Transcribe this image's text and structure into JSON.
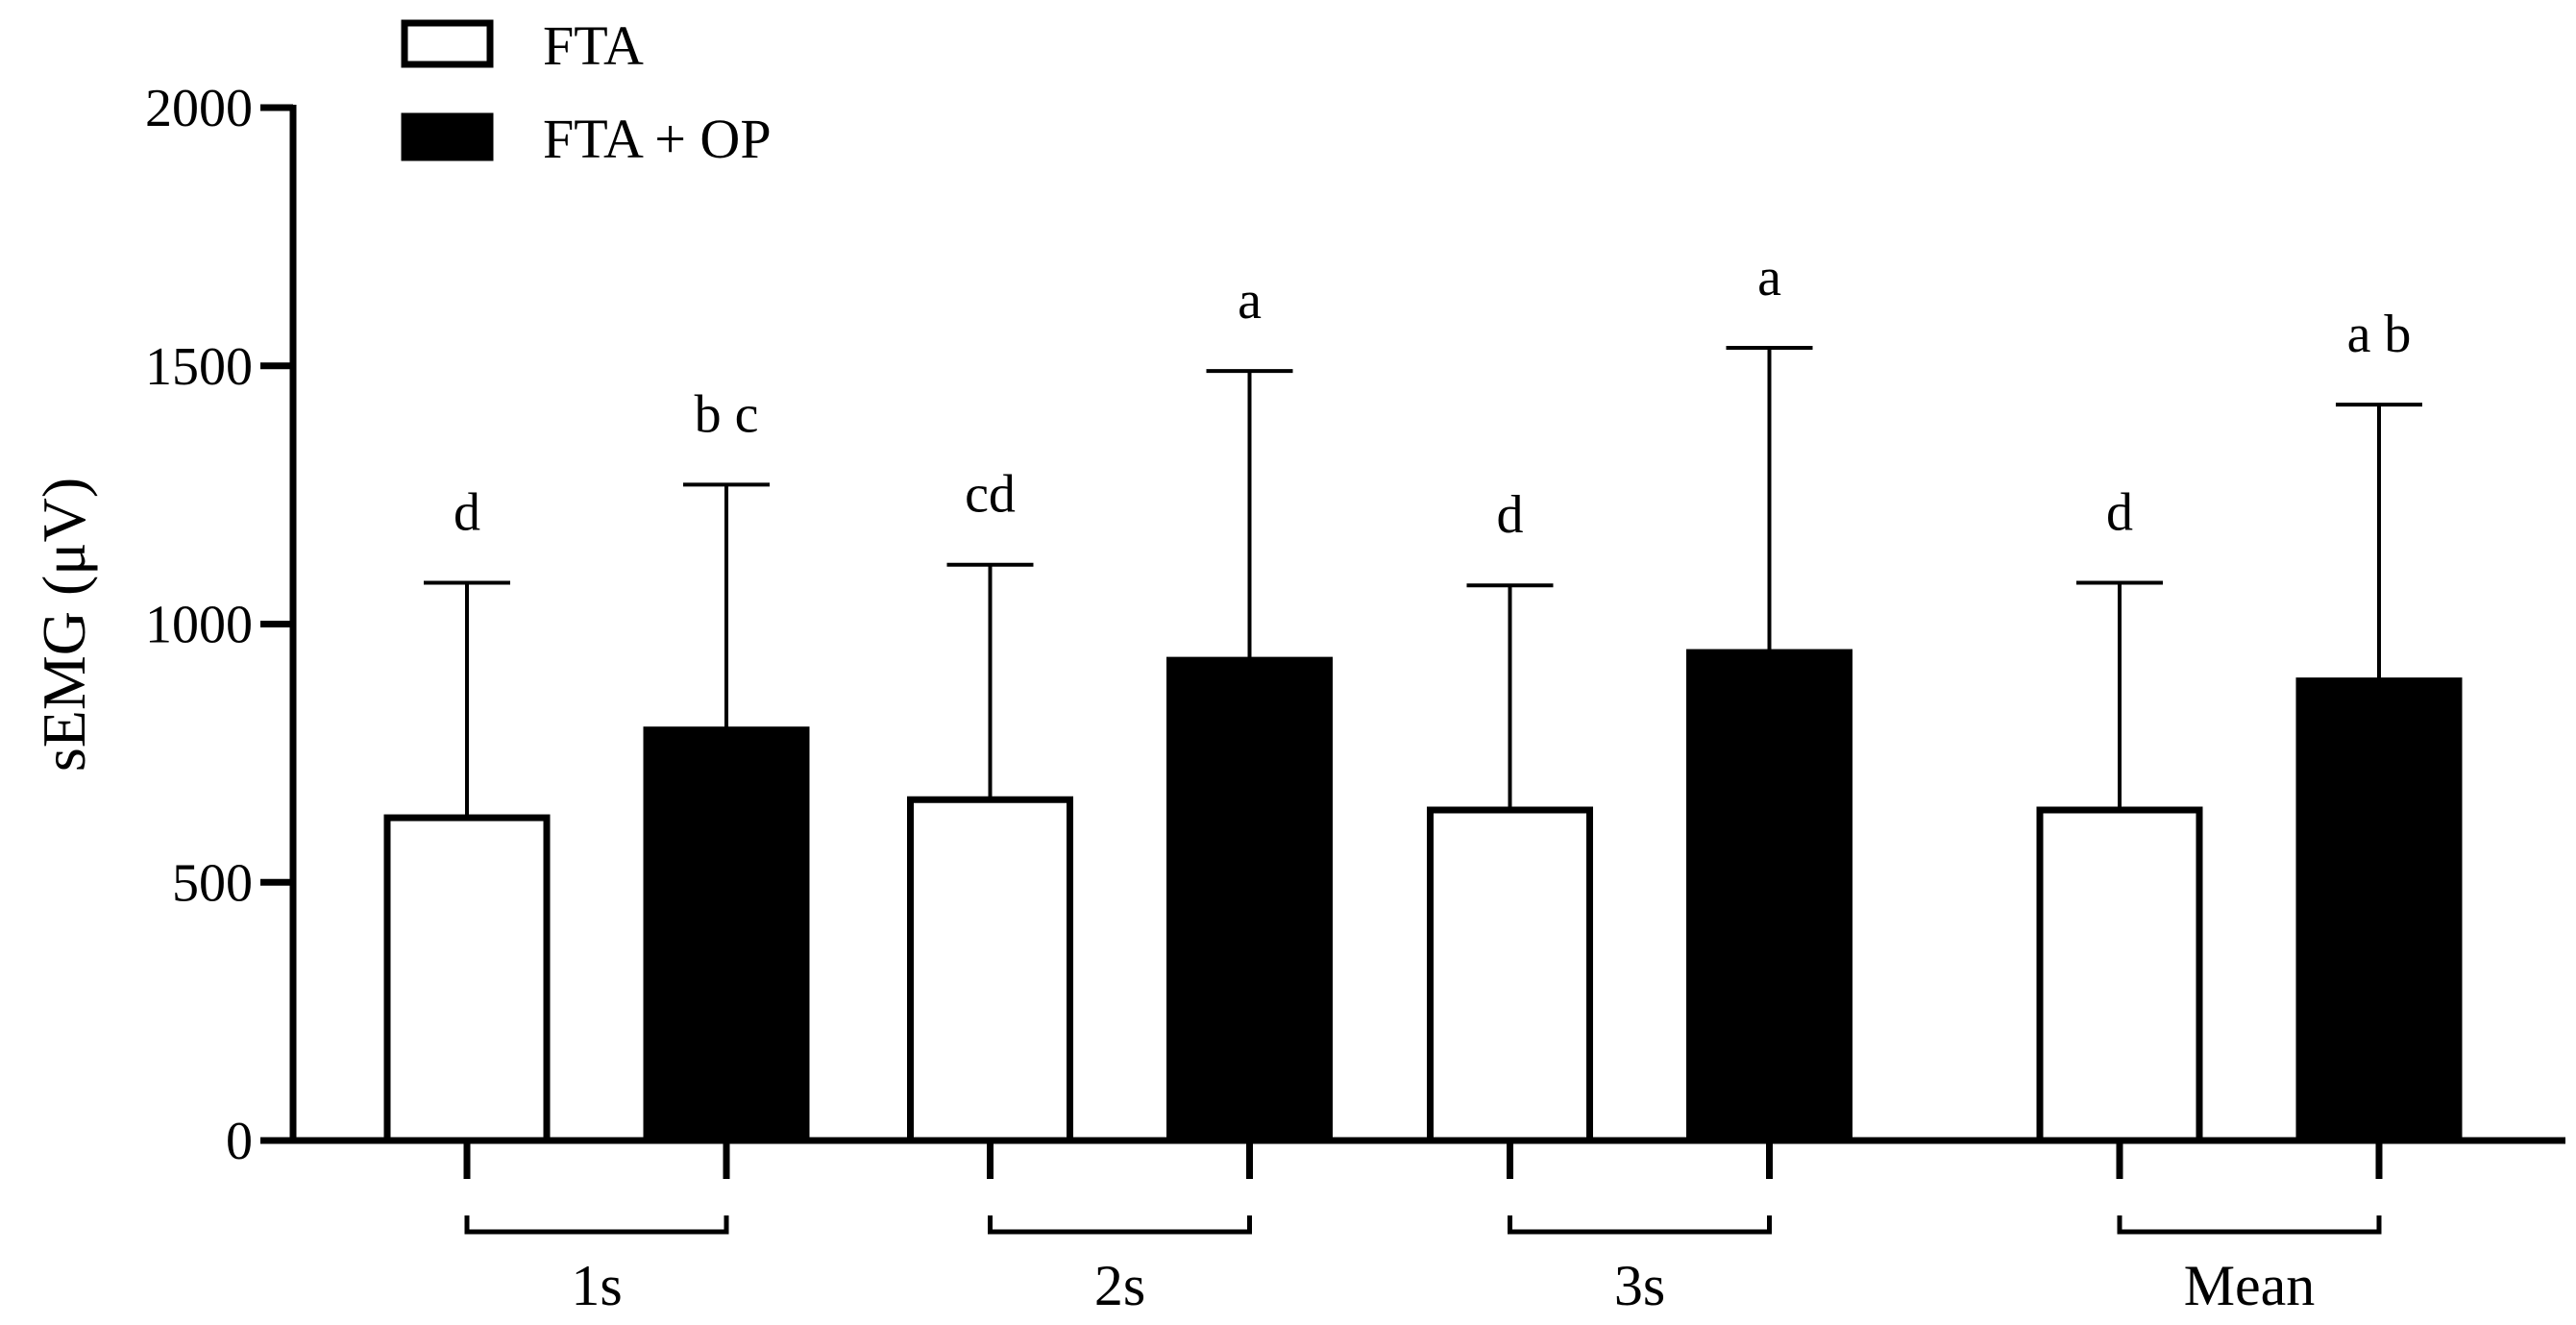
{
  "chart_data": {
    "type": "bar",
    "ylabel": "sEMG (μV)",
    "xlabel": "",
    "ylim": [
      0,
      2000
    ],
    "yticks": [
      0,
      500,
      1000,
      1500,
      2000
    ],
    "grid": false,
    "legend_position": "top-left",
    "categories": [
      "1s",
      "2s",
      "3s",
      "Mean"
    ],
    "series": [
      {
        "name": "FTA",
        "fill": "#ffffff",
        "values": [
          625,
          660,
          640,
          640
        ],
        "errors": [
          455,
          455,
          435,
          440
        ],
        "significance": [
          "d",
          "cd",
          "d",
          "d"
        ]
      },
      {
        "name": "FTA + OP",
        "fill": "#000000",
        "values": [
          795,
          930,
          945,
          890
        ],
        "errors": [
          475,
          560,
          590,
          535
        ],
        "significance": [
          "b c",
          "a",
          "a",
          "a b"
        ]
      }
    ]
  }
}
